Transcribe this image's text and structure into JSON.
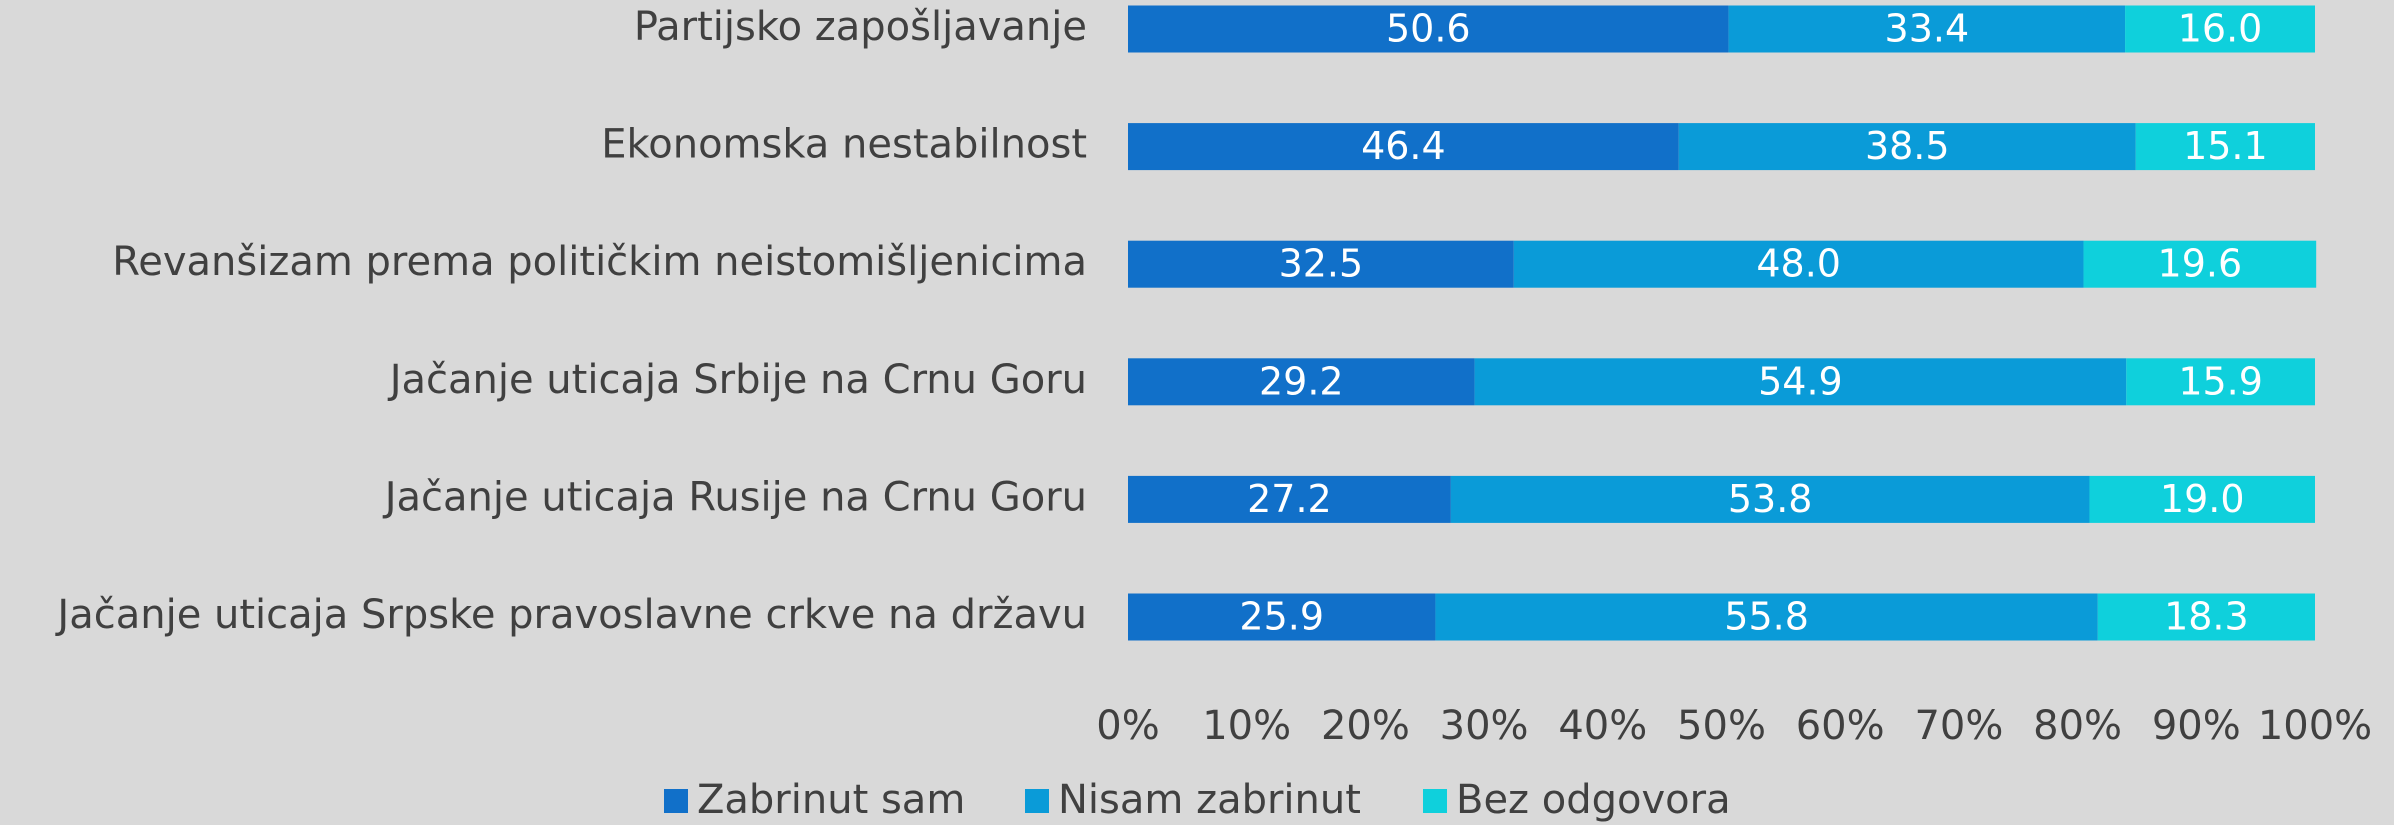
{
  "chart_data": {
    "type": "stacked_barh",
    "categories": [
      "Partijsko zapošljavanje",
      "Ekonomska nestabilnost",
      "Revanšizam prema političkim neistomišljenicima",
      "Jačanje uticaja Srbije na Crnu Goru",
      "Jačanje uticaja Rusije na Crnu Goru",
      "Jačanje uticaja Srpske pravoslavne crkve na državu"
    ],
    "series": [
      {
        "name": "Zabrinut sam",
        "color": "#1170c9",
        "values": [
          50.6,
          46.4,
          32.5,
          29.2,
          27.2,
          25.9
        ],
        "value_labels": [
          "50.6",
          "46.4",
          "32.5",
          "29.2",
          "27.2",
          "25.9"
        ]
      },
      {
        "name": "Nisam zabrinut",
        "color": "#0a9bd8",
        "values": [
          33.4,
          38.5,
          48.0,
          54.9,
          53.8,
          55.8
        ],
        "value_labels": [
          "33.4",
          "38.5",
          "48.0",
          "54.9",
          "53.8",
          "55.8"
        ]
      },
      {
        "name": "Bez odgovora",
        "color": "#0fd0dc",
        "values": [
          16.0,
          15.1,
          19.6,
          15.9,
          19.0,
          18.3
        ],
        "value_labels": [
          "16.0",
          "15.1",
          "19.6",
          "15.9",
          "19.0",
          "18.3"
        ]
      }
    ],
    "xlim": [
      0,
      100
    ],
    "xticks": [
      {
        "value": 0,
        "label": "0%"
      },
      {
        "value": 10,
        "label": "10%"
      },
      {
        "value": 20,
        "label": "20%"
      },
      {
        "value": 30,
        "label": "30%"
      },
      {
        "value": 40,
        "label": "40%"
      },
      {
        "value": 50,
        "label": "50%"
      },
      {
        "value": 60,
        "label": "60%"
      },
      {
        "value": 70,
        "label": "70%"
      },
      {
        "value": 80,
        "label": "80%"
      },
      {
        "value": 90,
        "label": "90%"
      },
      {
        "value": 100,
        "label": "100%"
      }
    ],
    "legend": "bottom"
  }
}
